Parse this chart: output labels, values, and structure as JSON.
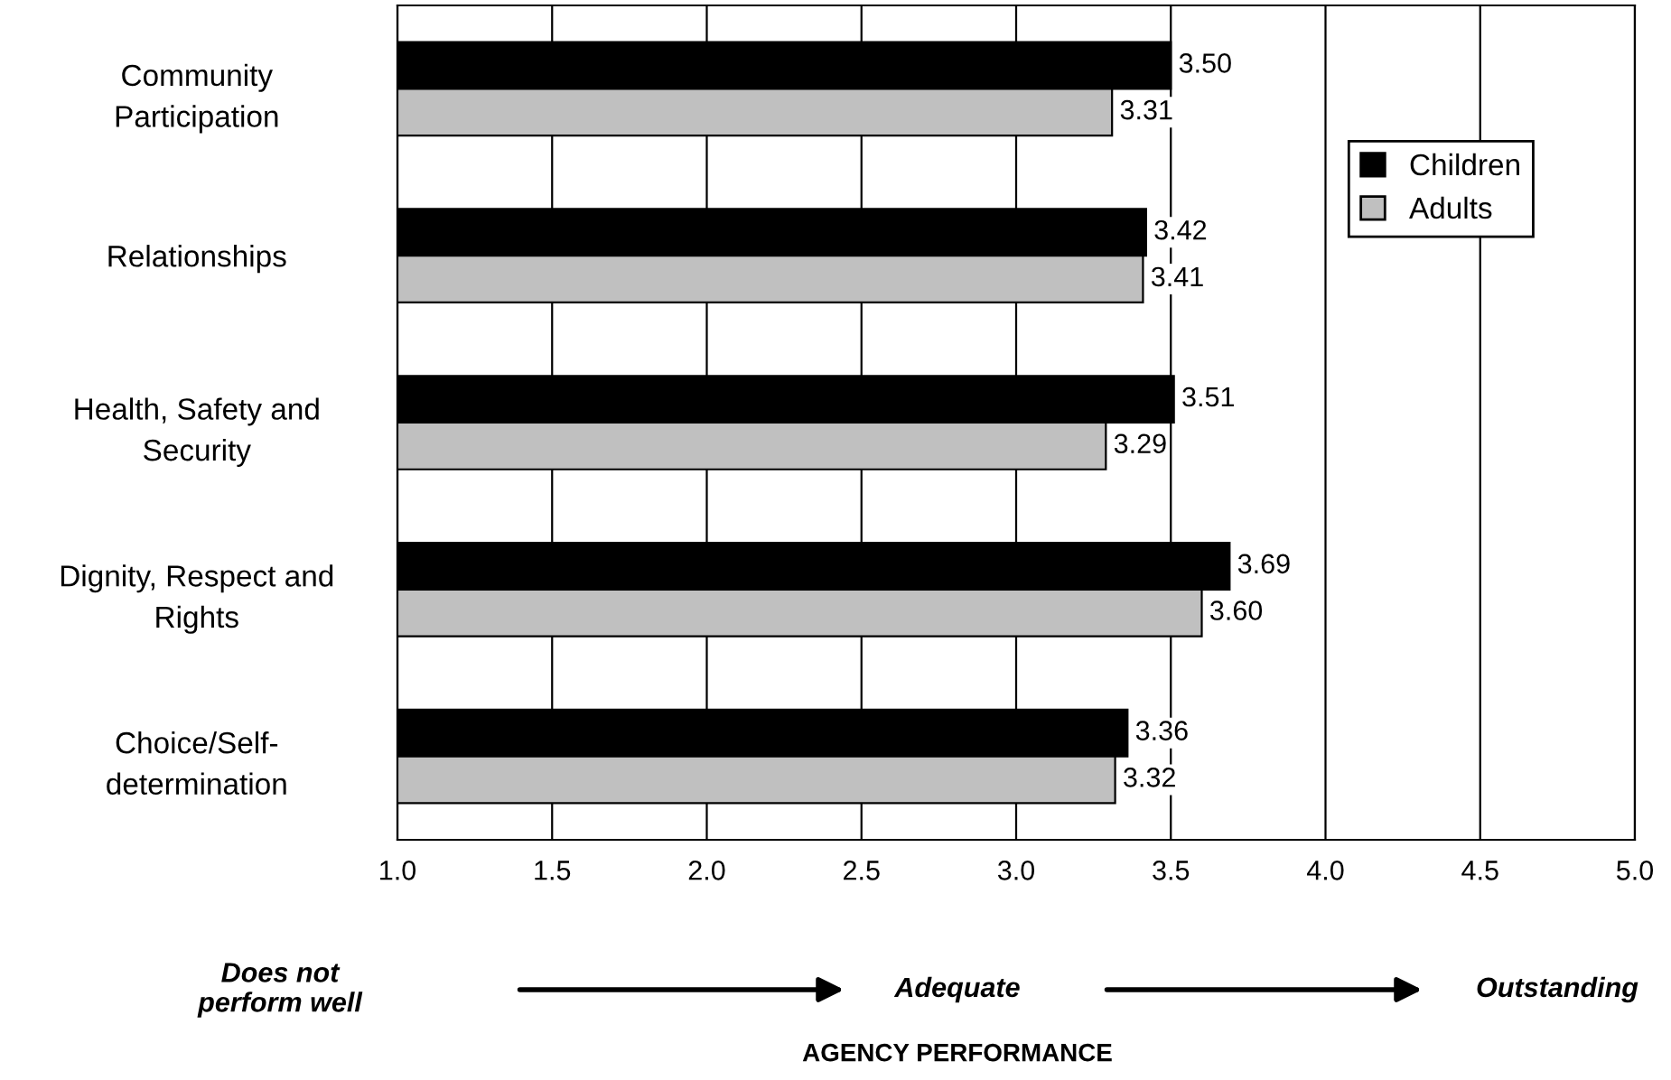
{
  "chart_data": {
    "type": "bar",
    "orientation": "horizontal",
    "categories": [
      "Community\nParticipation",
      "Relationships",
      "Health, Safety and\nSecurity",
      "Dignity, Respect and\nRights",
      "Choice/Self-\ndetermination"
    ],
    "series": [
      {
        "name": "Children",
        "color": "#000000",
        "values": [
          3.5,
          3.42,
          3.51,
          3.69,
          3.36
        ],
        "value_labels": [
          "3.50",
          "3.42",
          "3.51",
          "3.69",
          "3.36"
        ]
      },
      {
        "name": "Adults",
        "color": "#c0c0c0",
        "values": [
          3.31,
          3.41,
          3.29,
          3.6,
          3.32
        ],
        "value_labels": [
          "3.31",
          "3.41",
          "3.29",
          "3.60",
          "3.32"
        ]
      }
    ],
    "xlim": [
      1,
      5
    ],
    "xticks": [
      {
        "value": 1,
        "label": "1.0"
      },
      {
        "value": 1.5,
        "label": "1.5"
      },
      {
        "value": 2,
        "label": "2.0"
      },
      {
        "value": 2.5,
        "label": "2.5"
      },
      {
        "value": 3,
        "label": "3.0"
      },
      {
        "value": 3.5,
        "label": "3.5"
      },
      {
        "value": 4,
        "label": "4.0"
      },
      {
        "value": 4.5,
        "label": "4.5"
      },
      {
        "value": 5,
        "label": "5.0"
      }
    ],
    "grid": "x",
    "legend": "right",
    "annotations": [
      "Does not\nperform well",
      "Adequate",
      "Outstanding",
      "AGENCY PERFORMANCE"
    ]
  }
}
